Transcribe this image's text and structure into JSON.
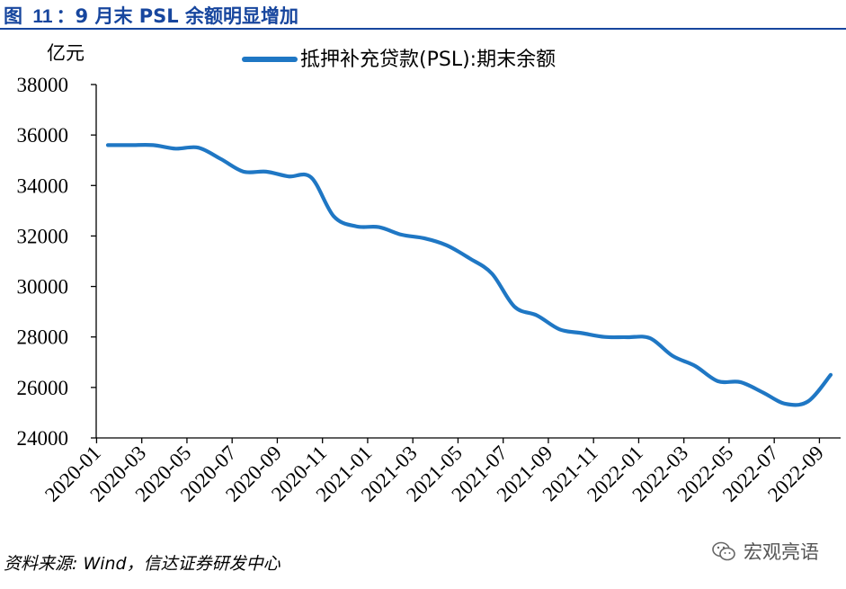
{
  "figure": {
    "label": "图",
    "number": "11",
    "title_sep": "：",
    "title": "9 月末 PSL 余额明显增加"
  },
  "source": "资料来源: Wind，信达证券研发中心",
  "watermark": "宏观亮语",
  "colors": {
    "series": "#1f77c4",
    "title": "#17469e",
    "axis": "#000000"
  },
  "chart_data": {
    "type": "line",
    "unit_label": "亿元",
    "legend_position": "top",
    "ylim": [
      24000,
      38000
    ],
    "yticks": [
      24000,
      26000,
      28000,
      30000,
      32000,
      34000,
      36000,
      38000
    ],
    "xtick_labels": [
      "2020-01",
      "2020-03",
      "2020-05",
      "2020-07",
      "2020-09",
      "2020-11",
      "2021-01",
      "2021-03",
      "2021-05",
      "2021-07",
      "2021-09",
      "2021-11",
      "2022-01",
      "2022-03",
      "2022-05",
      "2022-07",
      "2022-09"
    ],
    "categories": [
      "2020-01",
      "2020-02",
      "2020-03",
      "2020-04",
      "2020-05",
      "2020-06",
      "2020-07",
      "2020-08",
      "2020-09",
      "2020-10",
      "2020-11",
      "2020-12",
      "2021-01",
      "2021-02",
      "2021-03",
      "2021-04",
      "2021-05",
      "2021-06",
      "2021-07",
      "2021-08",
      "2021-09",
      "2021-10",
      "2021-11",
      "2021-12",
      "2022-01",
      "2022-02",
      "2022-03",
      "2022-04",
      "2022-05",
      "2022-06",
      "2022-07",
      "2022-08",
      "2022-09"
    ],
    "series": [
      {
        "name": "抵押补充贷款(PSL):期末余额",
        "values": [
          35600,
          35600,
          35600,
          35460,
          35500,
          35050,
          34550,
          34550,
          34360,
          34320,
          32780,
          32380,
          32350,
          32050,
          31910,
          31630,
          31120,
          30510,
          29200,
          28850,
          28300,
          28150,
          28000,
          27990,
          27950,
          27250,
          26850,
          26250,
          26210,
          25800,
          25350,
          25450,
          26500
        ]
      }
    ]
  }
}
